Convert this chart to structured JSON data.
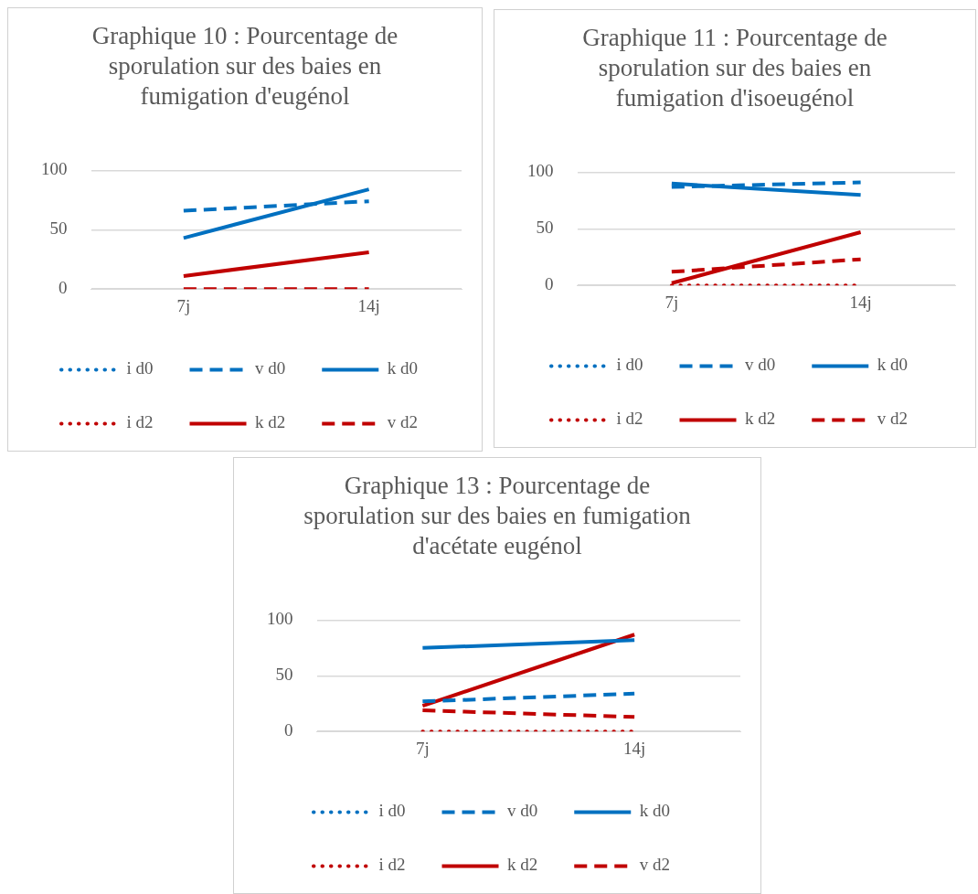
{
  "chart_data": [
    {
      "type": "line",
      "title": "Graphique 10 : Pourcentage de sporulation sur des baies en fumigation d'eugénol",
      "categories": [
        "7j",
        "14j"
      ],
      "ylim": [
        0,
        100
      ],
      "yticks": [
        0,
        50,
        100
      ],
      "grid": "y",
      "legend": "bottom",
      "series": [
        {
          "name": "i d0",
          "color": "#0070c0",
          "line_style": "dotted",
          "values": [
            null,
            null
          ]
        },
        {
          "name": "v d0",
          "color": "#0070c0",
          "line_style": "dashed",
          "values": [
            66,
            74
          ]
        },
        {
          "name": "k d0",
          "color": "#0070c0",
          "line_style": "solid",
          "values": [
            43,
            84
          ]
        },
        {
          "name": "i d2",
          "color": "#c00000",
          "line_style": "dotted",
          "values": [
            null,
            null
          ]
        },
        {
          "name": "k d2",
          "color": "#c00000",
          "line_style": "solid",
          "values": [
            11,
            31
          ]
        },
        {
          "name": "v d2",
          "color": "#c00000",
          "line_style": "dashed",
          "values": [
            0,
            0
          ]
        }
      ]
    },
    {
      "type": "line",
      "title": "Graphique 11 : Pourcentage de sporulation sur des baies en fumigation d'isoeugénol",
      "categories": [
        "7j",
        "14j"
      ],
      "ylim": [
        0,
        100
      ],
      "yticks": [
        0,
        50,
        100
      ],
      "grid": "y",
      "legend": "bottom",
      "series": [
        {
          "name": "i d0",
          "color": "#0070c0",
          "line_style": "dotted",
          "values": [
            null,
            null
          ]
        },
        {
          "name": "v d0",
          "color": "#0070c0",
          "line_style": "dashed",
          "values": [
            87,
            91
          ]
        },
        {
          "name": "k d0",
          "color": "#0070c0",
          "line_style": "solid",
          "values": [
            90,
            80
          ]
        },
        {
          "name": "i d2",
          "color": "#c00000",
          "line_style": "dotted",
          "values": [
            0,
            0
          ]
        },
        {
          "name": "k d2",
          "color": "#c00000",
          "line_style": "solid",
          "values": [
            2,
            47
          ]
        },
        {
          "name": "v d2",
          "color": "#c00000",
          "line_style": "dashed",
          "values": [
            12,
            23
          ]
        }
      ]
    },
    {
      "type": "line",
      "title": "Graphique 13 : Pourcentage de sporulation sur des baies en fumigation d'acétate eugénol",
      "categories": [
        "7j",
        "14j"
      ],
      "ylim": [
        0,
        100
      ],
      "yticks": [
        0,
        50,
        100
      ],
      "grid": "y",
      "legend": "bottom",
      "series": [
        {
          "name": "i d0",
          "color": "#0070c0",
          "line_style": "dotted",
          "values": [
            null,
            null
          ]
        },
        {
          "name": "v d0",
          "color": "#0070c0",
          "line_style": "dashed",
          "values": [
            27,
            34
          ]
        },
        {
          "name": "k d0",
          "color": "#0070c0",
          "line_style": "solid",
          "values": [
            75,
            82
          ]
        },
        {
          "name": "i d2",
          "color": "#c00000",
          "line_style": "dotted",
          "values": [
            0,
            0
          ]
        },
        {
          "name": "k d2",
          "color": "#c00000",
          "line_style": "solid",
          "values": [
            23,
            87
          ]
        },
        {
          "name": "v d2",
          "color": "#c00000",
          "line_style": "dashed",
          "values": [
            19,
            13
          ]
        }
      ]
    }
  ]
}
